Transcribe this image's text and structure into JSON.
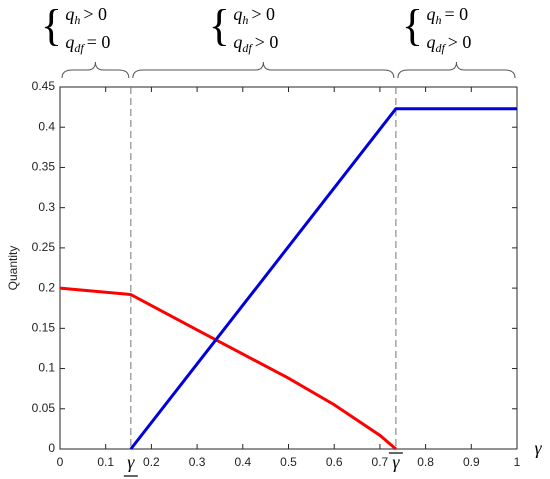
{
  "chart_data": {
    "type": "line",
    "y_label": "Quantity",
    "x_label": "γ",
    "xlim": [
      0,
      1
    ],
    "ylim": [
      0,
      0.45
    ],
    "xticks": [
      0,
      0.1,
      0.2,
      0.3,
      0.4,
      0.5,
      0.6,
      0.7,
      0.8,
      0.9,
      1
    ],
    "yticks": [
      0,
      0.05,
      0.1,
      0.15,
      0.2,
      0.25,
      0.3,
      0.35,
      0.4,
      0.45
    ],
    "x_marker_ticks": [
      {
        "value": 0.155,
        "label": "γ",
        "mark": "underline"
      },
      {
        "value": 0.735,
        "label": "γ",
        "mark": "overline"
      }
    ],
    "regions": [
      {
        "lines": [
          [
            "q",
            "h",
            "> 0"
          ],
          [
            "q",
            "df",
            "= 0"
          ]
        ]
      },
      {
        "lines": [
          [
            "q",
            "h",
            "> 0"
          ],
          [
            "q",
            "df",
            "> 0"
          ]
        ]
      },
      {
        "lines": [
          [
            "q",
            "h",
            "= 0"
          ],
          [
            "q",
            "df",
            "> 0"
          ]
        ]
      }
    ],
    "series": [
      {
        "color": "#ff0000",
        "x": [
          0,
          0.155,
          0.3,
          0.4,
          0.5,
          0.6,
          0.7,
          0.735
        ],
        "values": [
          0.2,
          0.192,
          0.148,
          0.118,
          0.088,
          0.055,
          0.017,
          0
        ]
      },
      {
        "color": "#0000dd",
        "x": [
          0.155,
          0.735,
          1
        ],
        "values": [
          0,
          0.423,
          0.423
        ]
      }
    ]
  }
}
